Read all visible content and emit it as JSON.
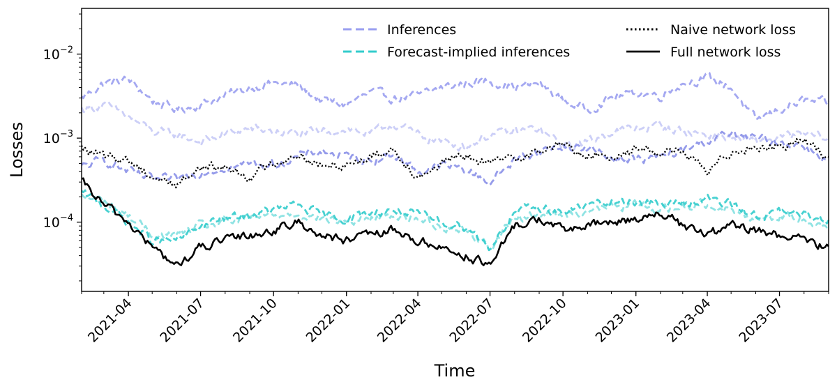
{
  "chart_data": {
    "type": "line",
    "xlabel": "Time",
    "ylabel": "Losses",
    "yscale": "log",
    "ylim": [
      1.5e-05,
      0.035
    ],
    "xlim": [
      "2021-02-01",
      "2023-09-01"
    ],
    "x_ticks": [
      {
        "date": "2021-04-01",
        "label": "2021-04"
      },
      {
        "date": "2021-07-01",
        "label": "2021-07"
      },
      {
        "date": "2021-10-01",
        "label": "2021-10"
      },
      {
        "date": "2022-01-01",
        "label": "2022-01"
      },
      {
        "date": "2022-04-01",
        "label": "2022-04"
      },
      {
        "date": "2022-07-01",
        "label": "2022-07"
      },
      {
        "date": "2022-10-01",
        "label": "2022-10"
      },
      {
        "date": "2023-01-01",
        "label": "2023-01"
      },
      {
        "date": "2023-04-01",
        "label": "2023-04"
      },
      {
        "date": "2023-07-01",
        "label": "2023-07"
      }
    ],
    "y_ticks": [
      {
        "value": 0.0001,
        "base": "10",
        "exp": "−4"
      },
      {
        "value": 0.001,
        "base": "10",
        "exp": "−3"
      },
      {
        "value": 0.01,
        "base": "10",
        "exp": "−2"
      }
    ],
    "legend": {
      "position": "upper-center",
      "entries": [
        {
          "label": "Inferences",
          "color": "#9a9ff0",
          "dash": "dashed"
        },
        {
          "label": "Forecast-implied inferences",
          "color": "#33cccc",
          "dash": "dashed"
        },
        {
          "label": "Naive network loss",
          "color": "#000000",
          "dash": "dotted"
        },
        {
          "label": "Full network loss",
          "color": "#000000",
          "dash": "solid"
        }
      ]
    },
    "series": [
      {
        "name": "Inferences (model 1)",
        "legend_group": "Inferences",
        "color": "#9a9ff0",
        "opacity": 0.9,
        "dash": "dashed",
        "x": [
          "2021-02-01",
          "2021-03-01",
          "2021-04-01",
          "2021-05-01",
          "2021-06-01",
          "2021-07-01",
          "2021-08-01",
          "2021-09-01",
          "2021-10-01",
          "2021-11-01",
          "2021-12-01",
          "2022-01-01",
          "2022-02-01",
          "2022-03-01",
          "2022-04-01",
          "2022-05-01",
          "2022-06-01",
          "2022-07-01",
          "2022-08-01",
          "2022-09-01",
          "2022-10-01",
          "2022-11-01",
          "2022-12-01",
          "2023-01-01",
          "2023-02-01",
          "2023-03-01",
          "2023-04-01",
          "2023-05-01",
          "2023-06-01",
          "2023-07-01",
          "2023-08-01",
          "2023-09-01"
        ],
        "values": [
          0.003,
          0.0045,
          0.005,
          0.0028,
          0.0022,
          0.0025,
          0.0032,
          0.004,
          0.0045,
          0.0042,
          0.0028,
          0.0025,
          0.0035,
          0.003,
          0.0032,
          0.004,
          0.0045,
          0.0048,
          0.004,
          0.0045,
          0.0028,
          0.0022,
          0.003,
          0.0035,
          0.0032,
          0.0045,
          0.0052,
          0.004,
          0.0016,
          0.0022,
          0.0028,
          0.0026
        ]
      },
      {
        "name": "Inferences (model 2)",
        "legend_group": "Inferences",
        "color": "#9a9ff0",
        "opacity": 0.5,
        "dash": "dashed",
        "x": [
          "2021-02-01",
          "2021-03-01",
          "2021-04-01",
          "2021-05-01",
          "2021-06-01",
          "2021-07-01",
          "2021-08-01",
          "2021-09-01",
          "2021-10-01",
          "2021-11-01",
          "2021-12-01",
          "2022-01-01",
          "2022-02-01",
          "2022-03-01",
          "2022-04-01",
          "2022-05-01",
          "2022-06-01",
          "2022-07-01",
          "2022-08-01",
          "2022-09-01",
          "2022-10-01",
          "2022-11-01",
          "2022-12-01",
          "2023-01-01",
          "2023-02-01",
          "2023-03-01",
          "2023-04-01",
          "2023-05-01",
          "2023-06-01",
          "2023-07-01",
          "2023-08-01",
          "2023-09-01"
        ],
        "values": [
          0.0022,
          0.0025,
          0.0018,
          0.0012,
          0.0011,
          0.0009,
          0.0011,
          0.0013,
          0.0012,
          0.0011,
          0.0012,
          0.0013,
          0.0011,
          0.0015,
          0.0011,
          0.0009,
          0.0008,
          0.0011,
          0.0012,
          0.0013,
          0.0008,
          0.0009,
          0.0012,
          0.0013,
          0.0014,
          0.0012,
          0.0011,
          0.001,
          0.0009,
          0.001,
          0.0011,
          0.001
        ]
      },
      {
        "name": "Inferences (model 3)",
        "legend_group": "Inferences",
        "color": "#8a90e8",
        "opacity": 0.9,
        "dash": "dashed",
        "x": [
          "2021-02-01",
          "2021-03-01",
          "2021-04-01",
          "2021-05-01",
          "2021-06-01",
          "2021-07-01",
          "2021-08-01",
          "2021-09-01",
          "2021-10-01",
          "2021-11-01",
          "2021-12-01",
          "2022-01-01",
          "2022-02-01",
          "2022-03-01",
          "2022-04-01",
          "2022-05-01",
          "2022-06-01",
          "2022-07-01",
          "2022-08-01",
          "2022-09-01",
          "2022-10-01",
          "2022-11-01",
          "2022-12-01",
          "2023-01-01",
          "2023-02-01",
          "2023-03-01",
          "2023-04-01",
          "2023-05-01",
          "2023-06-01",
          "2023-07-01",
          "2023-08-01",
          "2023-09-01"
        ],
        "values": [
          0.00045,
          0.00055,
          0.0004,
          0.00032,
          0.00032,
          0.0004,
          0.00045,
          0.0005,
          0.00048,
          0.0006,
          0.0007,
          0.0006,
          0.00055,
          0.00065,
          0.0004,
          0.00048,
          0.00042,
          0.0003,
          0.00055,
          0.0007,
          0.0008,
          0.00075,
          0.0006,
          0.00055,
          0.0006,
          0.0007,
          0.00095,
          0.0011,
          0.001,
          0.0009,
          0.0008,
          0.00055
        ]
      },
      {
        "name": "Forecast-implied inferences (model 1)",
        "legend_group": "Forecast-implied inferences",
        "color": "#33cccc",
        "opacity": 0.9,
        "dash": "dashed",
        "x": [
          "2021-02-01",
          "2021-03-01",
          "2021-04-01",
          "2021-05-01",
          "2021-06-01",
          "2021-07-01",
          "2021-08-01",
          "2021-09-01",
          "2021-10-01",
          "2021-11-01",
          "2021-12-01",
          "2022-01-01",
          "2022-02-01",
          "2022-03-01",
          "2022-04-01",
          "2022-05-01",
          "2022-06-01",
          "2022-07-01",
          "2022-08-01",
          "2022-09-01",
          "2022-10-01",
          "2022-11-01",
          "2022-12-01",
          "2023-01-01",
          "2023-02-01",
          "2023-03-01",
          "2023-04-01",
          "2023-05-01",
          "2023-06-01",
          "2023-07-01",
          "2023-08-01",
          "2023-09-01"
        ],
        "values": [
          0.00022,
          0.00016,
          0.0001,
          6e-05,
          6e-05,
          9e-05,
          0.00011,
          0.00012,
          0.00014,
          0.00016,
          0.00012,
          0.00011,
          0.00013,
          0.00014,
          0.00012,
          0.0001,
          9e-05,
          5e-05,
          0.00013,
          0.00015,
          0.00013,
          0.00016,
          0.00017,
          0.00018,
          0.00016,
          0.00017,
          0.00019,
          0.00016,
          0.00012,
          0.00013,
          0.00012,
          0.00011
        ]
      },
      {
        "name": "Forecast-implied inferences (model 2)",
        "legend_group": "Forecast-implied inferences",
        "color": "#33cccc",
        "opacity": 0.55,
        "dash": "dashed",
        "x": [
          "2021-02-01",
          "2021-03-01",
          "2021-04-01",
          "2021-05-01",
          "2021-06-01",
          "2021-07-01",
          "2021-08-01",
          "2021-09-01",
          "2021-10-01",
          "2021-11-01",
          "2021-12-01",
          "2022-01-01",
          "2022-02-01",
          "2022-03-01",
          "2022-04-01",
          "2022-05-01",
          "2022-06-01",
          "2022-07-01",
          "2022-08-01",
          "2022-09-01",
          "2022-10-01",
          "2022-11-01",
          "2022-12-01",
          "2023-01-01",
          "2023-02-01",
          "2023-03-01",
          "2023-04-01",
          "2023-05-01",
          "2023-06-01",
          "2023-07-01",
          "2023-08-01",
          "2023-09-01"
        ],
        "values": [
          0.0002,
          0.00018,
          0.00012,
          7e-05,
          7e-05,
          9e-05,
          0.0001,
          0.00011,
          0.00012,
          0.00013,
          0.00011,
          0.0001,
          0.00011,
          0.00012,
          0.00011,
          9e-05,
          8e-05,
          5e-05,
          0.00011,
          0.00013,
          0.00012,
          0.00014,
          0.00015,
          0.00016,
          0.00014,
          0.00015,
          0.00017,
          0.00014,
          0.00011,
          0.00012,
          0.00011,
          9e-05
        ]
      },
      {
        "name": "Naive network loss",
        "legend_group": "Naive network loss",
        "color": "#000000",
        "opacity": 1,
        "dash": "dotted",
        "x": [
          "2021-02-01",
          "2021-03-01",
          "2021-04-01",
          "2021-05-01",
          "2021-06-01",
          "2021-07-01",
          "2021-08-01",
          "2021-09-01",
          "2021-10-01",
          "2021-11-01",
          "2021-12-01",
          "2022-01-01",
          "2022-02-01",
          "2022-03-01",
          "2022-04-01",
          "2022-05-01",
          "2022-06-01",
          "2022-07-01",
          "2022-08-01",
          "2022-09-01",
          "2022-10-01",
          "2022-11-01",
          "2022-12-01",
          "2023-01-01",
          "2023-02-01",
          "2023-03-01",
          "2023-04-01",
          "2023-05-01",
          "2023-06-01",
          "2023-07-01",
          "2023-08-01",
          "2023-09-01"
        ],
        "values": [
          0.00075,
          0.0006,
          0.00055,
          0.00035,
          0.00028,
          0.00045,
          0.00045,
          0.00035,
          0.0005,
          0.00065,
          0.00045,
          0.0005,
          0.0006,
          0.00075,
          0.00035,
          0.0005,
          0.0006,
          0.0005,
          0.0006,
          0.0007,
          0.00085,
          0.0006,
          0.0006,
          0.00075,
          0.0007,
          0.0007,
          0.00038,
          0.0007,
          0.0008,
          0.0008,
          0.00095,
          0.0006
        ]
      },
      {
        "name": "Full network loss",
        "legend_group": "Full network loss",
        "color": "#000000",
        "opacity": 1,
        "dash": "solid",
        "x": [
          "2021-02-01",
          "2021-03-01",
          "2021-04-01",
          "2021-05-01",
          "2021-06-01",
          "2021-07-01",
          "2021-08-01",
          "2021-09-01",
          "2021-10-01",
          "2021-11-01",
          "2021-12-01",
          "2022-01-01",
          "2022-02-01",
          "2022-03-01",
          "2022-04-01",
          "2022-05-01",
          "2022-06-01",
          "2022-07-01",
          "2022-08-01",
          "2022-09-01",
          "2022-10-01",
          "2022-11-01",
          "2022-12-01",
          "2023-01-01",
          "2023-02-01",
          "2023-03-01",
          "2023-04-01",
          "2023-05-01",
          "2023-06-01",
          "2023-07-01",
          "2023-08-01",
          "2023-09-01"
        ],
        "values": [
          0.0003,
          0.00016,
          0.0001,
          5e-05,
          3e-05,
          5e-05,
          6e-05,
          7e-05,
          8e-05,
          0.0001,
          7e-05,
          6e-05,
          7e-05,
          8e-05,
          6e-05,
          5e-05,
          4e-05,
          3e-05,
          9e-05,
          0.00011,
          8e-05,
          9e-05,
          0.0001,
          0.00011,
          0.00013,
          9e-05,
          7e-05,
          9e-05,
          8e-05,
          7e-05,
          6e-05,
          5e-05
        ]
      }
    ]
  }
}
